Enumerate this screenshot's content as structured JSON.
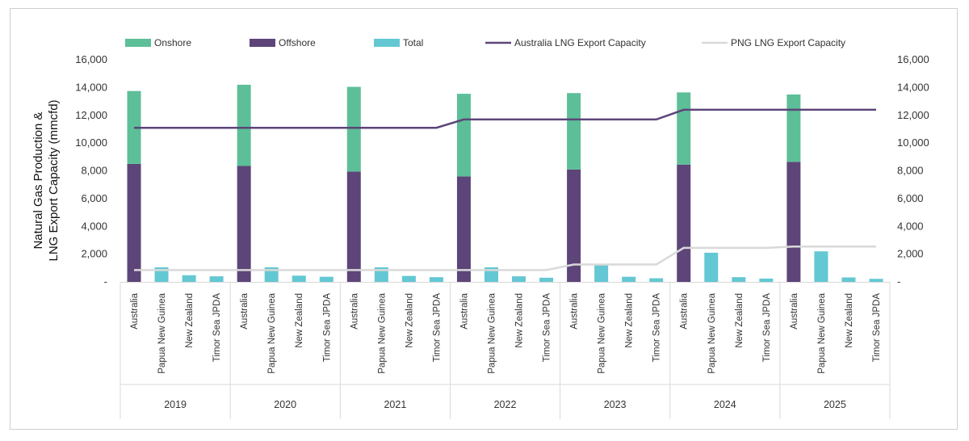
{
  "chart_data": {
    "type": "bar",
    "ylabel": "Natural Gas Production & LNG Export Capacity (mmcfd)",
    "ylim": [
      0,
      16000
    ],
    "yticks": [
      0,
      2000,
      4000,
      6000,
      8000,
      10000,
      12000,
      14000,
      16000
    ],
    "ytick_labels": [
      "-",
      "2,000",
      "4,000",
      "6,000",
      "8,000",
      "10,000",
      "12,000",
      "14,000",
      "16,000"
    ],
    "years": [
      "2019",
      "2020",
      "2021",
      "2022",
      "2023",
      "2024",
      "2025"
    ],
    "countries": [
      "Australia",
      "Papua New Guinea",
      "New Zealand",
      "Timor Sea JPDA"
    ],
    "legend": [
      {
        "name": "Onshore",
        "kind": "bar",
        "color": "#5dbf98"
      },
      {
        "name": "Offshore",
        "kind": "bar",
        "color": "#5d4579"
      },
      {
        "name": "Total",
        "kind": "bar",
        "color": "#63c8d3"
      },
      {
        "name": "Australia LNG Export Capacity",
        "kind": "line",
        "color": "#5d4579"
      },
      {
        "name": "PNG LNG Export Capacity",
        "kind": "line",
        "color": "#d9d9d9"
      }
    ],
    "series": [
      {
        "name": "Offshore",
        "country": "Australia",
        "values": [
          8500,
          8350,
          7950,
          7600,
          8100,
          8450,
          8650
        ]
      },
      {
        "name": "Onshore",
        "country": "Australia",
        "values": [
          5250,
          5850,
          6100,
          5950,
          5500,
          5200,
          4850
        ]
      },
      {
        "name": "Total",
        "country": "Papua New Guinea",
        "values": [
          1050,
          1050,
          1050,
          1050,
          1200,
          2100,
          2200
        ]
      },
      {
        "name": "Total",
        "country": "New Zealand",
        "values": [
          480,
          450,
          430,
          400,
          370,
          340,
          320
        ]
      },
      {
        "name": "Total",
        "country": "Timor Sea JPDA",
        "values": [
          400,
          370,
          340,
          300,
          260,
          240,
          220
        ]
      },
      {
        "name": "Australia LNG Export Capacity",
        "values": [
          11100,
          11100,
          11100,
          11700,
          11700,
          12400,
          12400
        ]
      },
      {
        "name": "PNG LNG Export Capacity",
        "values": [
          850,
          850,
          850,
          850,
          1250,
          2450,
          2550
        ]
      }
    ],
    "grid": false,
    "legend_position": "top",
    "secondary_axis": true
  }
}
